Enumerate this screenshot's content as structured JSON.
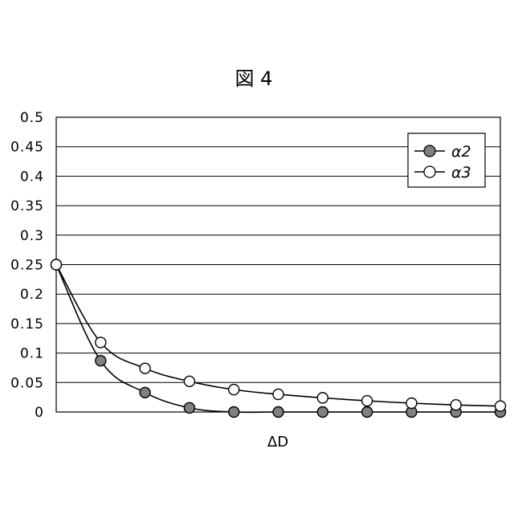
{
  "chart_data": {
    "type": "line",
    "title": "図 4",
    "xlabel": "ΔD",
    "ylabel": "",
    "ylim": [
      0,
      0.5
    ],
    "yticks": [
      "0",
      "0.05",
      "0.1",
      "0.15",
      "0.2",
      "0.25",
      "0.3",
      "0.35",
      "0.4",
      "0.45",
      "0.5"
    ],
    "grid": true,
    "legend": "top-right",
    "x": [
      1,
      2,
      3,
      4,
      5,
      6,
      7,
      8,
      9,
      10,
      11
    ],
    "series": [
      {
        "name": "α2",
        "marker_fill": "#808080",
        "values": [
          0.25,
          0.087,
          0.033,
          0.007,
          0.0,
          0.0,
          0.0,
          0.0,
          0.0,
          0.0,
          0.0
        ]
      },
      {
        "name": "α3",
        "marker_fill": "#ffffff",
        "values": [
          0.25,
          0.118,
          0.074,
          0.052,
          0.038,
          0.03,
          0.024,
          0.019,
          0.015,
          0.012,
          0.01
        ]
      }
    ]
  }
}
